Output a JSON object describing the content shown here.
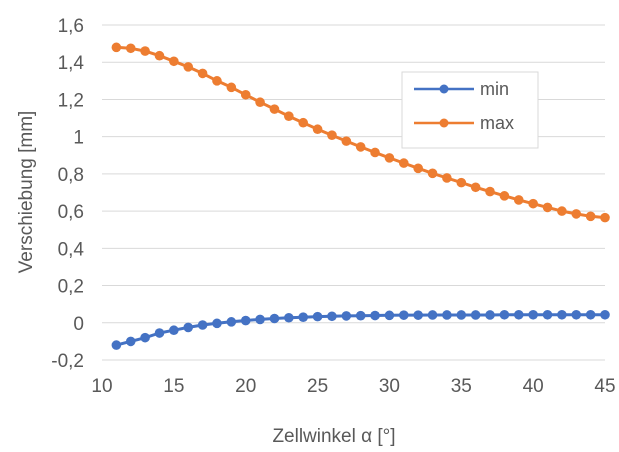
{
  "chart_data": {
    "type": "line",
    "title": "",
    "xlabel": "Zellwinkel α [°]",
    "ylabel": "Verschiebung [mm]",
    "xlim": [
      10,
      45
    ],
    "ylim": [
      -0.2,
      1.6
    ],
    "xticks": [
      10,
      15,
      20,
      25,
      30,
      35,
      40,
      45
    ],
    "xtick_labels": [
      "10",
      "15",
      "20",
      "25",
      "30",
      "35",
      "40",
      "45"
    ],
    "yticks": [
      -0.2,
      0,
      0.2,
      0.4,
      0.6,
      0.8,
      1.0,
      1.2,
      1.4,
      1.6
    ],
    "ytick_labels": [
      "-0,2",
      "0",
      "0,2",
      "0,4",
      "0,6",
      "0,8",
      "1",
      "1,2",
      "1,4",
      "1,6"
    ],
    "grid": "horizontal",
    "legend": "top-right inside",
    "x": [
      11,
      12,
      13,
      14,
      15,
      16,
      17,
      18,
      19,
      20,
      21,
      22,
      23,
      24,
      25,
      26,
      27,
      28,
      29,
      30,
      31,
      32,
      33,
      34,
      35,
      36,
      37,
      38,
      39,
      40,
      41,
      42,
      43,
      44,
      45
    ],
    "series": [
      {
        "name": "min",
        "color": "#4472c4",
        "values": [
          -0.12,
          -0.1,
          -0.08,
          -0.055,
          -0.04,
          -0.025,
          -0.012,
          -0.003,
          0.005,
          0.012,
          0.018,
          0.023,
          0.027,
          0.03,
          0.033,
          0.035,
          0.037,
          0.038,
          0.039,
          0.04,
          0.041,
          0.041,
          0.042,
          0.042,
          0.042,
          0.042,
          0.042,
          0.043,
          0.043,
          0.043,
          0.043,
          0.043,
          0.043,
          0.043,
          0.043
        ]
      },
      {
        "name": "max",
        "color": "#ed7d31",
        "values": [
          1.48,
          1.475,
          1.46,
          1.435,
          1.405,
          1.375,
          1.34,
          1.3,
          1.265,
          1.225,
          1.185,
          1.148,
          1.11,
          1.075,
          1.04,
          1.008,
          0.976,
          0.945,
          0.915,
          0.886,
          0.858,
          0.83,
          0.803,
          0.778,
          0.753,
          0.728,
          0.705,
          0.682,
          0.66,
          0.64,
          0.62,
          0.6,
          0.585,
          0.572,
          0.565
        ]
      }
    ]
  }
}
